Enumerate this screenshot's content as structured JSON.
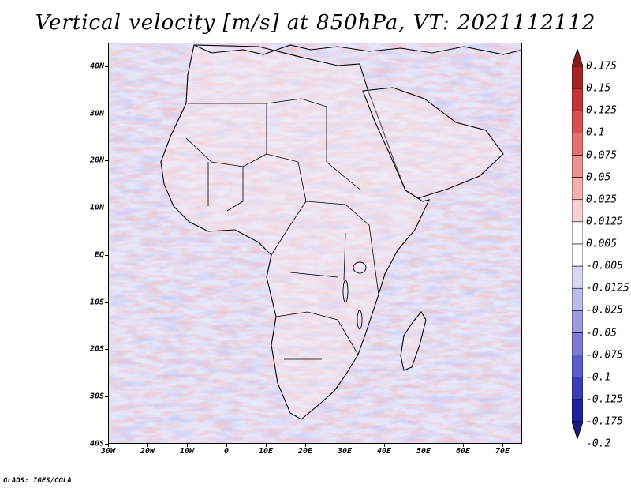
{
  "title": "Vertical velocity [m/s] at 850hPa, VT: 2021112112",
  "lat_labels": [
    "40N",
    "30N",
    "20N",
    "10N",
    "EQ",
    "10S",
    "20S",
    "30S",
    "40S"
  ],
  "lat_values": [
    40,
    30,
    20,
    10,
    0,
    -10,
    -20,
    -30,
    -40
  ],
  "lon_labels": [
    "30W",
    "20W",
    "10W",
    "0",
    "10E",
    "20E",
    "30E",
    "40E",
    "50E",
    "60E",
    "70E"
  ],
  "lon_values": [
    -30,
    -20,
    -10,
    0,
    10,
    20,
    30,
    40,
    50,
    60,
    70
  ],
  "colorbar": {
    "labels": [
      "0.175",
      "0.15",
      "0.125",
      "0.1",
      "0.075",
      "0.05",
      "0.025",
      "0.0125",
      "0.005",
      "-0.005",
      "-0.0125",
      "-0.025",
      "-0.05",
      "-0.075",
      "-0.1",
      "-0.125",
      "-0.175",
      "-0.2"
    ],
    "colors": [
      "#8b1a1a",
      "#a82424",
      "#c43434",
      "#d85050",
      "#e47070",
      "#ec9090",
      "#f2b0b0",
      "#f8d0d0",
      "#ffffff",
      "#ffffff",
      "#d8d8f4",
      "#bcbcec",
      "#9c9ce2",
      "#7c7cd6",
      "#5c5ccc",
      "#3c3cb8",
      "#2020a0",
      "#1a1a80"
    ],
    "colors_count": 18
  },
  "credit": "GrADS: IGES/COLA"
}
